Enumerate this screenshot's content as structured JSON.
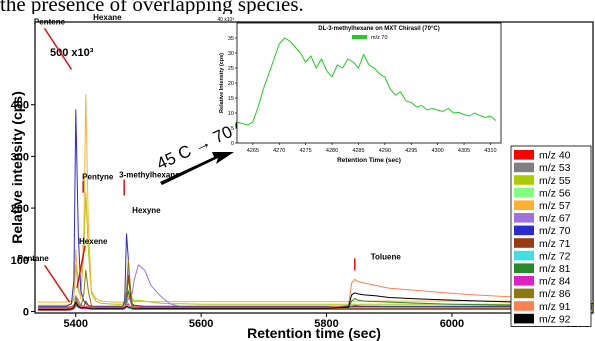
{
  "header_text": "the presence of overlapping species.",
  "chart_data": [
    {
      "type": "line",
      "xlabel": "Retention time (sec)",
      "ylabel": "Relative intensity (cps)",
      "y_axis_multiplier": "500 x10³",
      "xlim": [
        5335,
        6225
      ],
      "ylim": [
        -3,
        560
      ],
      "xticks": [
        5400,
        5600,
        5800,
        6000,
        6200
      ],
      "yticks": [
        0,
        100,
        200,
        300,
        400
      ],
      "legend_position": "right",
      "grid": false,
      "x": [
        5340,
        5385,
        5393,
        5397,
        5400,
        5404,
        5408,
        5413,
        5416,
        5420,
        5425,
        5432,
        5440,
        5450,
        5465,
        5475,
        5478,
        5481,
        5484,
        5487,
        5490,
        5493,
        5500,
        5510,
        5520,
        5535,
        5550,
        5570,
        5600,
        5700,
        5800,
        5835,
        5840,
        5845,
        5850,
        5860,
        5880,
        5900,
        5950,
        6000,
        6050,
        6100,
        6150,
        6200,
        6225
      ],
      "annotation_arrow_text": "45 C → 70 C",
      "annotations": [
        {
          "text": "Hexane",
          "x": 5415,
          "y": 560
        },
        {
          "text": "Pentene",
          "x": 5398,
          "y": 420
        },
        {
          "text": "Pentyne",
          "x": 5415,
          "y": 195
        },
        {
          "text": "3-methylhexane",
          "x": 5482,
          "y": 170
        },
        {
          "text": "Hexyne",
          "x": 5490,
          "y": 140
        },
        {
          "text": "Hexene",
          "x": 5418,
          "y": 100
        },
        {
          "text": "Pentane",
          "x": 5395,
          "y": 12
        },
        {
          "text": "Toluene",
          "x": 5845,
          "y": 60
        }
      ],
      "series": [
        {
          "name": "m/z 40",
          "color": "#ff0000",
          "values": [
            8,
            8,
            9,
            12,
            20,
            12,
            9,
            9,
            10,
            9,
            9,
            9,
            9,
            9,
            9,
            9,
            9,
            10,
            9,
            9,
            9,
            9,
            9,
            9,
            9,
            9,
            9,
            9,
            9,
            9,
            9,
            9,
            9,
            9,
            9,
            9,
            9,
            9,
            9,
            9,
            9,
            9,
            9,
            9,
            9
          ]
        },
        {
          "name": "m/z 53",
          "color": "#808080",
          "values": [
            6,
            6,
            7,
            10,
            30,
            22,
            12,
            10,
            9,
            8,
            7,
            7,
            7,
            7,
            7,
            7,
            8,
            14,
            10,
            8,
            7,
            7,
            7,
            7,
            7,
            7,
            7,
            7,
            7,
            7,
            7,
            7,
            10,
            12,
            11,
            10,
            10,
            9,
            9,
            8,
            8,
            8,
            8,
            8,
            8
          ]
        },
        {
          "name": "m/z 55",
          "color": "#aacc00",
          "values": [
            12,
            12,
            14,
            25,
            90,
            40,
            30,
            120,
            230,
            120,
            35,
            20,
            16,
            15,
            14,
            14,
            20,
            30,
            60,
            40,
            25,
            20,
            22,
            20,
            18,
            16,
            15,
            15,
            14,
            14,
            14,
            14,
            14,
            14,
            14,
            14,
            14,
            14,
            14,
            14,
            14,
            14,
            14,
            14,
            14
          ]
        },
        {
          "name": "m/z 56",
          "color": "#80ff80",
          "values": [
            5,
            5,
            6,
            8,
            15,
            10,
            8,
            8,
            8,
            7,
            7,
            7,
            7,
            7,
            7,
            7,
            7,
            12,
            10,
            8,
            7,
            7,
            7,
            7,
            7,
            7,
            7,
            7,
            7,
            7,
            7,
            7,
            7,
            7,
            7,
            7,
            7,
            7,
            7,
            7,
            7,
            7,
            7,
            7,
            7
          ]
        },
        {
          "name": "m/z 57",
          "color": "#ffb030",
          "values": [
            18,
            18,
            20,
            30,
            120,
            50,
            25,
            160,
            420,
            170,
            40,
            25,
            20,
            19,
            18,
            18,
            20,
            25,
            30,
            24,
            20,
            19,
            19,
            19,
            19,
            19,
            19,
            19,
            19,
            19,
            19,
            19,
            20,
            20,
            20,
            20,
            20,
            20,
            20,
            20,
            20,
            20,
            20,
            20,
            20
          ]
        },
        {
          "name": "m/z 67",
          "color": "#a070e0",
          "values": [
            3,
            3,
            4,
            8,
            30,
            15,
            10,
            9,
            8,
            8,
            7,
            7,
            7,
            7,
            7,
            7,
            8,
            12,
            25,
            30,
            35,
            60,
            90,
            80,
            50,
            30,
            15,
            8,
            6,
            5,
            5,
            5,
            5,
            5,
            5,
            5,
            5,
            5,
            5,
            5,
            5,
            5,
            5,
            5,
            5
          ]
        },
        {
          "name": "m/z 70",
          "color": "#2a2ad0",
          "values": [
            10,
            10,
            15,
            60,
            390,
            150,
            40,
            20,
            15,
            12,
            10,
            10,
            10,
            10,
            10,
            10,
            20,
            150,
            100,
            30,
            15,
            12,
            11,
            10,
            10,
            10,
            10,
            10,
            10,
            10,
            10,
            10,
            10,
            10,
            10,
            10,
            10,
            10,
            10,
            10,
            10,
            10,
            10,
            10,
            10
          ]
        },
        {
          "name": "m/z 71",
          "color": "#9a3a10",
          "values": [
            4,
            4,
            5,
            8,
            20,
            12,
            8,
            10,
            20,
            12,
            8,
            6,
            6,
            6,
            6,
            6,
            8,
            25,
            70,
            35,
            12,
            8,
            7,
            6,
            6,
            6,
            6,
            6,
            6,
            6,
            6,
            6,
            6,
            6,
            6,
            6,
            6,
            6,
            6,
            6,
            6,
            6,
            6,
            6,
            6
          ]
        },
        {
          "name": "m/z 72",
          "color": "#40e0e0",
          "values": [
            2,
            2,
            3,
            5,
            10,
            8,
            5,
            5,
            6,
            5,
            4,
            4,
            4,
            4,
            4,
            4,
            5,
            8,
            6,
            5,
            4,
            4,
            4,
            4,
            4,
            4,
            4,
            4,
            4,
            4,
            4,
            4,
            4,
            4,
            4,
            4,
            4,
            4,
            4,
            4,
            4,
            4,
            4,
            4,
            4
          ]
        },
        {
          "name": "m/z 81",
          "color": "#2a8a2a",
          "values": [
            5,
            5,
            6,
            8,
            15,
            10,
            8,
            8,
            8,
            7,
            7,
            7,
            7,
            7,
            7,
            7,
            8,
            20,
            40,
            20,
            10,
            8,
            7,
            7,
            7,
            7,
            7,
            7,
            7,
            7,
            7,
            7,
            20,
            25,
            22,
            20,
            19,
            18,
            16,
            14,
            13,
            12,
            12,
            12,
            12
          ]
        },
        {
          "name": "m/z 84",
          "color": "#e020c0",
          "values": [
            2,
            2,
            3,
            5,
            12,
            8,
            6,
            5,
            5,
            5,
            4,
            4,
            4,
            4,
            4,
            4,
            5,
            10,
            15,
            8,
            5,
            4,
            4,
            4,
            4,
            4,
            4,
            4,
            4,
            4,
            4,
            4,
            4,
            4,
            4,
            4,
            4,
            4,
            4,
            4,
            4,
            4,
            4,
            4,
            4
          ]
        },
        {
          "name": "m/z 86",
          "color": "#8a7a10",
          "values": [
            3,
            3,
            4,
            10,
            25,
            15,
            8,
            35,
            80,
            40,
            12,
            6,
            5,
            5,
            5,
            5,
            10,
            40,
            100,
            50,
            15,
            8,
            6,
            5,
            5,
            5,
            5,
            5,
            5,
            5,
            5,
            5,
            5,
            5,
            5,
            5,
            5,
            5,
            5,
            5,
            5,
            5,
            5,
            5,
            5
          ]
        },
        {
          "name": "m/z 91",
          "color": "#ff8050",
          "values": [
            6,
            6,
            7,
            10,
            20,
            12,
            9,
            9,
            9,
            8,
            8,
            8,
            8,
            8,
            8,
            8,
            9,
            12,
            10,
            9,
            8,
            8,
            8,
            8,
            8,
            8,
            8,
            8,
            8,
            8,
            8,
            12,
            55,
            62,
            58,
            55,
            50,
            45,
            40,
            35,
            31,
            28,
            25,
            22,
            20
          ]
        },
        {
          "name": "m/z 92",
          "color": "#000000",
          "values": [
            4,
            4,
            5,
            8,
            18,
            10,
            7,
            7,
            7,
            6,
            6,
            6,
            6,
            6,
            6,
            6,
            7,
            10,
            8,
            7,
            6,
            6,
            6,
            6,
            6,
            6,
            6,
            6,
            6,
            6,
            6,
            8,
            32,
            36,
            34,
            32,
            30,
            27,
            24,
            22,
            20,
            18,
            17,
            16,
            15
          ]
        }
      ]
    },
    {
      "type": "line",
      "title": "DL-3-methylhexane on MXT Chirasil (70°C)",
      "xlabel": "Retention Time (sec)",
      "ylabel": "Relative Intensity (cps)",
      "y_axis_multiplier": "40 x10³",
      "xlim": [
        4262,
        4312
      ],
      "ylim": [
        0,
        40
      ],
      "xticks": [
        4265,
        4270,
        4275,
        4280,
        4285,
        4290,
        4295,
        4300,
        4305,
        4310
      ],
      "yticks": [
        0,
        5,
        10,
        15,
        20,
        25,
        30,
        35
      ],
      "legend_position": "top-center",
      "grid": false,
      "x": [
        4262,
        4263,
        4264,
        4265,
        4266,
        4267,
        4268,
        4269,
        4270,
        4271,
        4272,
        4273,
        4274,
        4275,
        4276,
        4277,
        4278,
        4279,
        4280,
        4281,
        4282,
        4283,
        4284,
        4285,
        4286,
        4287,
        4288,
        4289,
        4290,
        4291,
        4292,
        4293,
        4294,
        4295,
        4296,
        4297,
        4298,
        4299,
        4300,
        4301,
        4302,
        4303,
        4304,
        4305,
        4306,
        4307,
        4308,
        4309,
        4310,
        4311
      ],
      "series": [
        {
          "name": "m/z 70",
          "color": "#22cc22",
          "values": [
            7,
            6.5,
            6,
            7,
            12,
            18,
            23,
            28,
            33,
            35,
            34,
            32,
            30,
            27,
            29,
            25,
            28,
            24,
            22,
            26,
            25,
            28,
            27,
            25,
            29.5,
            26,
            25,
            23,
            22,
            18,
            16,
            17,
            14,
            13.5,
            12,
            12.5,
            11,
            11.5,
            11,
            10.5,
            11.5,
            10,
            10.2,
            9.5,
            9,
            10,
            9.2,
            8.5,
            9,
            7.5
          ]
        }
      ]
    }
  ]
}
